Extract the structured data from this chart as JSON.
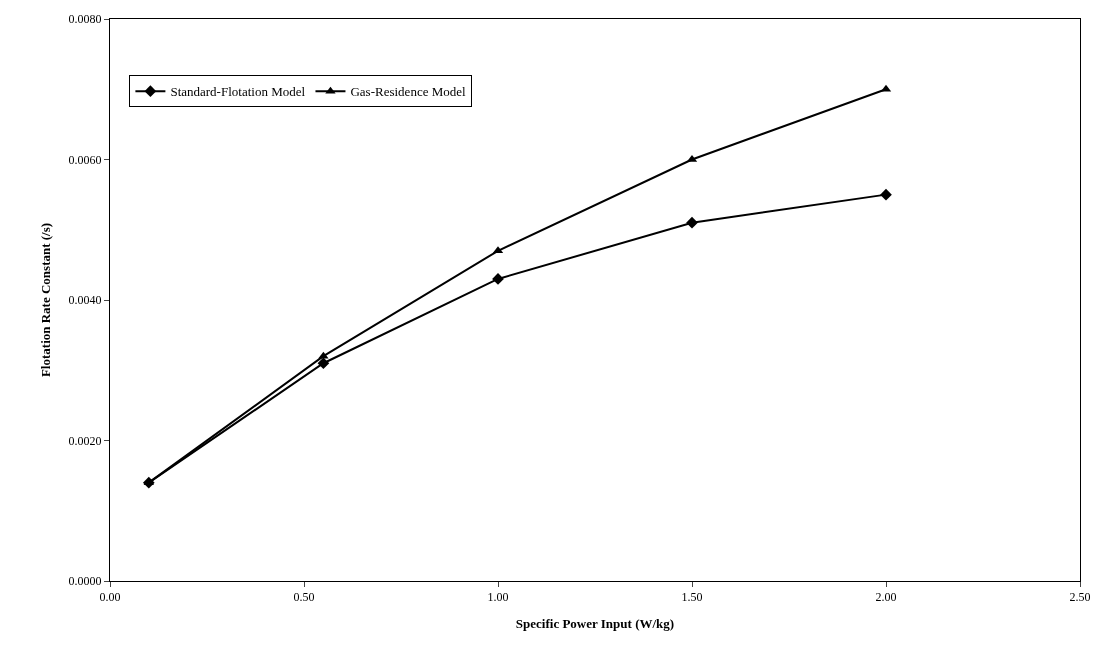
{
  "chart_data": {
    "type": "line",
    "xlabel": "Specific Power Input (W/kg)",
    "ylabel": "Flotation Rate Constant (/s)",
    "x": [
      0.1,
      0.55,
      1.0,
      1.5,
      2.0
    ],
    "series": [
      {
        "name": "Standard-Flotation Model",
        "color": "#000000",
        "marker": "diamond",
        "values": [
          0.0014,
          0.0031,
          0.0043,
          0.0051,
          0.0055
        ]
      },
      {
        "name": "Gas-Residence Model",
        "color": "#000000",
        "marker": "triangle",
        "values": [
          0.0014,
          0.0032,
          0.0047,
          0.006,
          0.007
        ]
      }
    ],
    "xlim": [
      0,
      2.5
    ],
    "xticks": [
      {
        "value": 0,
        "label": "0.00"
      },
      {
        "value": 0.5,
        "label": "0.50"
      },
      {
        "value": 1,
        "label": "1.00"
      },
      {
        "value": 1.5,
        "label": "1.50"
      },
      {
        "value": 2,
        "label": "2.00"
      },
      {
        "value": 2.5,
        "label": "2.50"
      }
    ],
    "ylim": [
      0,
      0.008
    ],
    "yticks": [
      {
        "value": 0,
        "label": "0.0000"
      },
      {
        "value": 0.002,
        "label": "0.0020"
      },
      {
        "value": 0.004,
        "label": "0.0040"
      },
      {
        "value": 0.006,
        "label": "0.0060"
      },
      {
        "value": 0.008,
        "label": "0.0080"
      }
    ],
    "legend": "top left",
    "line_style": "solid"
  }
}
